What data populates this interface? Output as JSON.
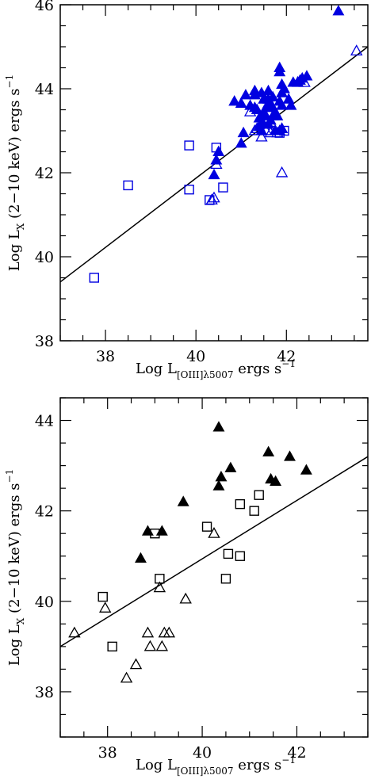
{
  "chart_data": [
    {
      "type": "scatter",
      "color": "#0000e0",
      "xlim": [
        37,
        43.8
      ],
      "ylim": [
        38,
        46
      ],
      "xticks": [
        "38",
        "40",
        "42"
      ],
      "yticks": [
        "38",
        "40",
        "42",
        "44",
        "46"
      ],
      "xlabel": {
        "main": "Log L",
        "sub": "[OIII]λ5007",
        "unit": " ergs s",
        "sup": "−1"
      },
      "ylabel": {
        "main": "Log L",
        "sub": "X",
        "unit": " (2−10 keV) ergs s",
        "sup": "−1"
      },
      "fit_line": {
        "x": [
          37,
          43.8
        ],
        "y": [
          39.4,
          45.0
        ]
      },
      "series": [
        {
          "marker": "filled-triangle",
          "points": [
            [
              43.15,
              45.85
            ],
            [
              41.6,
              43.95
            ],
            [
              41.9,
              43.9
            ],
            [
              41.1,
              43.85
            ],
            [
              41.3,
              43.85
            ],
            [
              41.5,
              43.75
            ],
            [
              41.7,
              43.8
            ],
            [
              41.85,
              44.5
            ],
            [
              41.85,
              44.4
            ],
            [
              41.9,
              44.1
            ],
            [
              41.95,
              44.0
            ],
            [
              41.55,
              43.55
            ],
            [
              41.6,
              43.65
            ],
            [
              41.7,
              43.55
            ],
            [
              41.75,
              43.45
            ],
            [
              41.8,
              43.35
            ],
            [
              41.85,
              43.7
            ],
            [
              41.9,
              43.6
            ],
            [
              41.2,
              43.6
            ],
            [
              41.3,
              43.55
            ],
            [
              41.35,
              43.5
            ],
            [
              41.4,
              43.3
            ],
            [
              41.45,
              43.2
            ],
            [
              41.5,
              43.4
            ],
            [
              41.55,
              43.35
            ],
            [
              41.4,
              43.1
            ],
            [
              41.45,
              43.0
            ],
            [
              41.5,
              43.15
            ],
            [
              41.6,
              43.15
            ],
            [
              41.65,
              43.25
            ],
            [
              41.75,
              43.0
            ],
            [
              41.85,
              43.0
            ],
            [
              41.9,
              43.05
            ],
            [
              41.7,
              43.35
            ],
            [
              41.0,
              43.65
            ],
            [
              40.85,
              43.7
            ],
            [
              41.05,
              42.95
            ],
            [
              41.0,
              42.7
            ],
            [
              40.5,
              42.5
            ],
            [
              40.45,
              42.3
            ],
            [
              40.4,
              41.95
            ],
            [
              42.05,
              43.75
            ],
            [
              42.1,
              43.6
            ],
            [
              42.15,
              44.15
            ],
            [
              42.25,
              44.15
            ],
            [
              42.3,
              44.2
            ],
            [
              42.35,
              44.25
            ],
            [
              42.45,
              44.3
            ],
            [
              41.3,
              43.95
            ],
            [
              41.45,
              43.9
            ],
            [
              41.6,
              43.75
            ]
          ]
        },
        {
          "marker": "open-triangle",
          "points": [
            [
              43.55,
              44.9
            ],
            [
              42.4,
              44.15
            ],
            [
              42.25,
              44.15
            ],
            [
              41.9,
              43.05
            ],
            [
              41.8,
              42.95
            ],
            [
              41.65,
              42.95
            ],
            [
              41.45,
              42.85
            ],
            [
              41.3,
              43.0
            ],
            [
              41.2,
              43.45
            ],
            [
              41.35,
              43.05
            ],
            [
              41.55,
              43.0
            ],
            [
              41.65,
              43.2
            ],
            [
              40.45,
              42.2
            ],
            [
              40.4,
              41.4
            ],
            [
              40.35,
              41.35
            ],
            [
              41.9,
              42.0
            ]
          ]
        },
        {
          "marker": "open-square",
          "points": [
            [
              37.75,
              39.5
            ],
            [
              38.5,
              41.7
            ],
            [
              39.85,
              42.65
            ],
            [
              39.85,
              41.6
            ],
            [
              40.45,
              42.6
            ],
            [
              40.6,
              41.65
            ],
            [
              40.3,
              41.35
            ],
            [
              41.85,
              42.95
            ],
            [
              41.95,
              43.0
            ]
          ]
        }
      ]
    },
    {
      "type": "scatter",
      "color": "#000000",
      "xlim": [
        37,
        43.5
      ],
      "ylim": [
        37,
        44.5
      ],
      "xticks": [
        "38",
        "40",
        "42"
      ],
      "yticks": [
        "38",
        "40",
        "42",
        "44"
      ],
      "xlabel": {
        "main": "Log L",
        "sub": "[OIII]λ5007",
        "unit": " ergs s",
        "sup": "−1"
      },
      "ylabel": {
        "main": "Log L",
        "sub": "X",
        "unit": " (2−10 keV) ergs s",
        "sup": "−1"
      },
      "fit_line": {
        "x": [
          37,
          43.5
        ],
        "y": [
          39.0,
          43.2
        ]
      },
      "series": [
        {
          "marker": "filled-triangle",
          "points": [
            [
              40.35,
              43.85
            ],
            [
              40.4,
              42.75
            ],
            [
              40.35,
              42.55
            ],
            [
              40.6,
              42.95
            ],
            [
              41.4,
              43.3
            ],
            [
              41.45,
              42.7
            ],
            [
              41.55,
              42.65
            ],
            [
              41.85,
              43.2
            ],
            [
              42.2,
              42.9
            ],
            [
              39.6,
              42.2
            ],
            [
              38.85,
              41.55
            ],
            [
              39.15,
              41.55
            ],
            [
              38.7,
              40.95
            ]
          ]
        },
        {
          "marker": "open-triangle",
          "points": [
            [
              37.3,
              39.3
            ],
            [
              37.95,
              39.85
            ],
            [
              39.1,
              40.3
            ],
            [
              39.65,
              40.05
            ],
            [
              40.25,
              41.5
            ],
            [
              38.85,
              39.3
            ],
            [
              38.9,
              39.0
            ],
            [
              39.15,
              39.0
            ],
            [
              39.2,
              39.3
            ],
            [
              39.3,
              39.3
            ],
            [
              38.6,
              38.6
            ],
            [
              38.4,
              38.3
            ]
          ]
        },
        {
          "marker": "open-square",
          "points": [
            [
              37.9,
              40.1
            ],
            [
              38.1,
              39.0
            ],
            [
              39.0,
              41.5
            ],
            [
              39.1,
              40.5
            ],
            [
              40.1,
              41.65
            ],
            [
              40.55,
              41.05
            ],
            [
              40.5,
              40.5
            ],
            [
              40.8,
              41.0
            ],
            [
              40.8,
              42.15
            ],
            [
              41.1,
              42.0
            ],
            [
              41.2,
              42.35
            ]
          ]
        }
      ]
    }
  ]
}
